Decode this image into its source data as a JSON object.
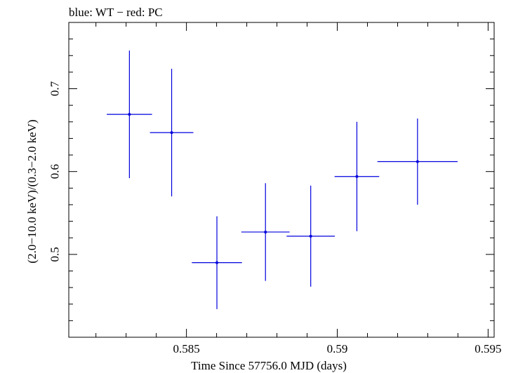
{
  "chart_data": {
    "type": "scatter",
    "title": "blue: WT − red: PC",
    "xlabel": "Time Since 57756.0 MJD (days)",
    "ylabel": "(2.0−10.0 keV)/(0.3−2.0 keV)",
    "xlim": [
      0.5811,
      0.5952
    ],
    "ylim": [
      0.4,
      0.78
    ],
    "x_ticks": [
      0.585,
      0.59,
      0.595
    ],
    "x_tick_labels": [
      "0.585",
      "0.59",
      "0.595"
    ],
    "y_ticks": [
      0.5,
      0.6,
      0.7
    ],
    "y_tick_labels": [
      "0.5",
      "0.6",
      "0.7"
    ],
    "grid": false,
    "series": [
      {
        "name": "WT",
        "color": "#0000dd",
        "points": [
          {
            "x": 0.58311,
            "y": 0.669,
            "xerr": 0.00075,
            "yerr": 0.077
          },
          {
            "x": 0.58451,
            "y": 0.647,
            "xerr": 0.00072,
            "yerr": 0.077
          },
          {
            "x": 0.58601,
            "y": 0.49,
            "xerr": 0.00083,
            "yerr": 0.056
          },
          {
            "x": 0.58762,
            "y": 0.527,
            "xerr": 0.0008,
            "yerr": 0.059
          },
          {
            "x": 0.58912,
            "y": 0.522,
            "xerr": 0.0008,
            "yerr": 0.061
          },
          {
            "x": 0.59065,
            "y": 0.594,
            "xerr": 0.00074,
            "yerr": 0.066
          },
          {
            "x": 0.59266,
            "y": 0.612,
            "xerr": 0.00133,
            "yerr": 0.052
          }
        ]
      }
    ]
  }
}
